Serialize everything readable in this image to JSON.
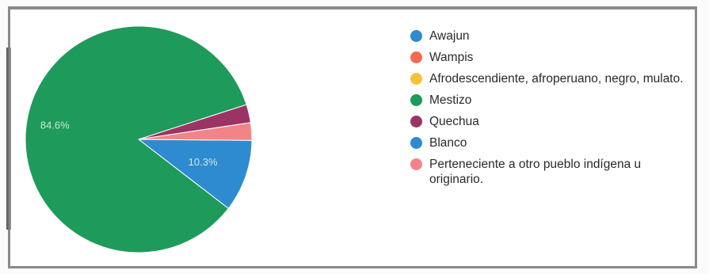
{
  "chart_data": {
    "type": "pie",
    "title": "",
    "legend_position": "right",
    "slices": [
      {
        "label": "Awajun",
        "value": 0.0,
        "color": "#2e8bd0"
      },
      {
        "label": "Wampis",
        "value": 0.0,
        "color": "#f26b50"
      },
      {
        "label": "Afrodescendiente, afroperuano, negro, mulato.",
        "value": 0.0,
        "color": "#f7c23b"
      },
      {
        "label": "Mestizo",
        "value": 84.6,
        "color": "#1e9a5a",
        "data_label": "84.6%"
      },
      {
        "label": "Quechua",
        "value": 2.6,
        "color": "#9b3465"
      },
      {
        "label": "Blanco",
        "value": 10.3,
        "color": "#2e8bd0",
        "data_label": "10.3%"
      },
      {
        "label": "Perteneciente a otro pueblo indígena u originario.",
        "value": 2.5,
        "color": "#f28488"
      }
    ]
  }
}
